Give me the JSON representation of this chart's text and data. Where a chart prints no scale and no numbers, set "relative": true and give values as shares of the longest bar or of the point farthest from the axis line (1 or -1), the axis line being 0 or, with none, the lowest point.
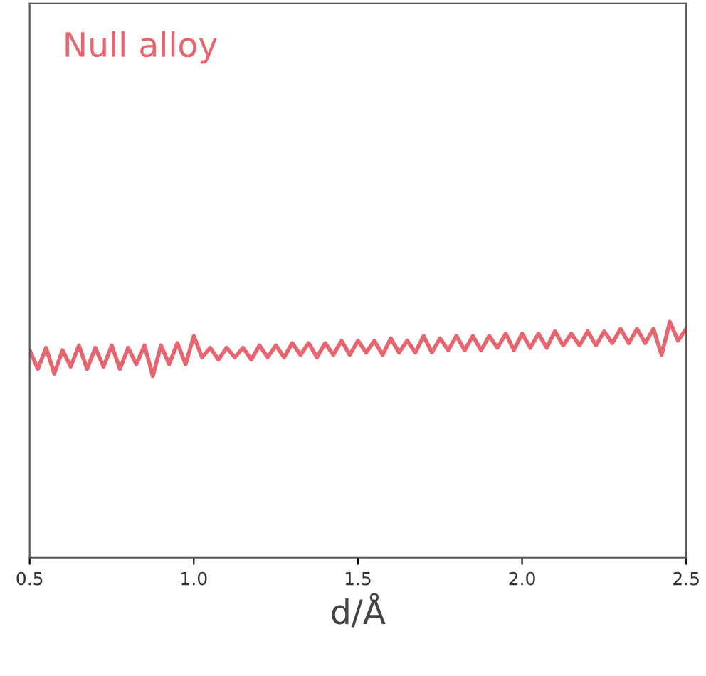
{
  "chart_data": {
    "type": "line",
    "title": "Null alloy",
    "xlabel": "d/Å",
    "relative": true,
    "xlim": [
      0.5,
      2.5
    ],
    "xticks": [
      0.5,
      {
        "value": 1,
        "label": "1.0"
      },
      1.5,
      {
        "value": 2,
        "label": "2.0"
      },
      2.5
    ],
    "grid": false,
    "legend": false,
    "marker": "none",
    "line_style": "solid",
    "x": [
      0.5,
      0.525,
      0.55,
      0.575,
      0.6,
      0.625,
      0.65,
      0.675,
      0.7,
      0.725,
      0.75,
      0.775,
      0.8,
      0.825,
      0.85,
      0.875,
      0.9,
      0.925,
      0.95,
      0.975,
      1.0,
      1.025,
      1.05,
      1.075,
      1.1,
      1.125,
      1.15,
      1.175,
      1.2,
      1.225,
      1.25,
      1.275,
      1.3,
      1.325,
      1.35,
      1.375,
      1.4,
      1.425,
      1.45,
      1.475,
      1.5,
      1.525,
      1.55,
      1.575,
      1.6,
      1.625,
      1.65,
      1.675,
      1.7,
      1.725,
      1.75,
      1.775,
      1.8,
      1.825,
      1.85,
      1.875,
      1.9,
      1.925,
      1.95,
      1.975,
      2.0,
      2.025,
      2.05,
      2.075,
      2.1,
      2.125,
      2.15,
      2.175,
      2.2,
      2.225,
      2.25,
      2.275,
      2.3,
      2.325,
      2.35,
      2.375,
      2.4,
      2.425,
      2.45,
      2.475,
      2.5
    ],
    "series": [
      {
        "color": "#e8646e",
        "values": [
          0.88,
          0.8,
          0.89,
          0.78,
          0.88,
          0.81,
          0.9,
          0.8,
          0.89,
          0.81,
          0.9,
          0.8,
          0.89,
          0.82,
          0.9,
          0.77,
          0.9,
          0.82,
          0.91,
          0.82,
          0.94,
          0.85,
          0.89,
          0.84,
          0.89,
          0.85,
          0.89,
          0.84,
          0.9,
          0.85,
          0.9,
          0.85,
          0.91,
          0.86,
          0.91,
          0.85,
          0.91,
          0.86,
          0.92,
          0.86,
          0.92,
          0.87,
          0.92,
          0.86,
          0.93,
          0.87,
          0.92,
          0.87,
          0.94,
          0.87,
          0.93,
          0.88,
          0.94,
          0.88,
          0.94,
          0.88,
          0.94,
          0.89,
          0.95,
          0.88,
          0.95,
          0.89,
          0.95,
          0.89,
          0.96,
          0.9,
          0.95,
          0.9,
          0.96,
          0.9,
          0.96,
          0.91,
          0.97,
          0.91,
          0.97,
          0.91,
          0.97,
          0.86,
          1.0,
          0.92,
          0.97
        ]
      }
    ]
  }
}
